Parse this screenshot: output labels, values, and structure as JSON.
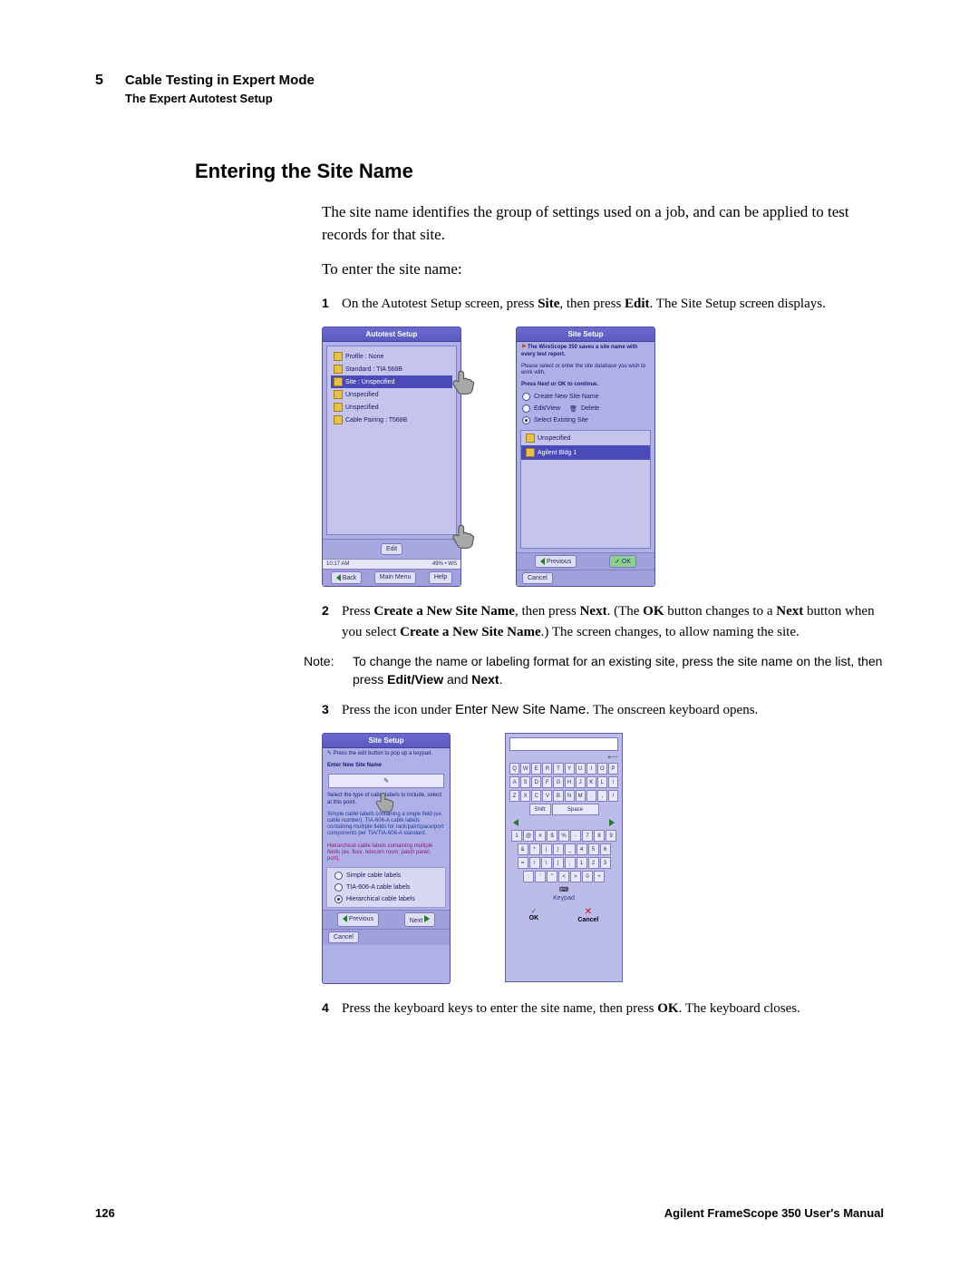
{
  "header": {
    "chapter": "5",
    "line1": "Cable Testing in Expert Mode",
    "line2": "The Expert Autotest Setup"
  },
  "section_title": "Entering the Site Name",
  "intro1": "The site name identifies the group of settings used on a job, and can be applied to test records for that site.",
  "intro2": "To enter the site name:",
  "step1": {
    "n": "1",
    "a": "On the Autotest Setup screen, press ",
    "b": "Site",
    "c": ", then press ",
    "d": "Edit",
    "e": ". The Site Setup screen displays."
  },
  "autotest_screen": {
    "title": "Autotest Setup",
    "items": [
      "Profile : None",
      "Standard : TIA 568B",
      "Site : Unspecified",
      "Unspecified",
      "Unspecified",
      "Cable Pairing : T568B"
    ],
    "edit": "Edit",
    "status_left": "10:17 AM",
    "status_right": "49% • WS",
    "btn_back": "Back",
    "btn_main": "Main\nMenu",
    "btn_help": "Help"
  },
  "sitesetup_screen": {
    "title": "Site Setup",
    "info1": "The WireScope 350 saves a site name with every test report.",
    "info2": "Please select or enter the site database you wish to work with.",
    "info3": "Press Next or OK to continue.",
    "r1": "Create New Site Name",
    "r2a": "Edit/View",
    "r2b": "Delete",
    "r3": "Select Existing Site",
    "site_a": "Unspecified",
    "site_b": "Agilent Bldg 1",
    "btn_prev": "Previous",
    "btn_ok": "OK",
    "btn_cancel": "Cancel"
  },
  "step2": {
    "n": "2",
    "a": "Press ",
    "b": "Create a New Site Name",
    "c": ", then press ",
    "d": "Next",
    "e": ". (The ",
    "f": "OK",
    "g": " button changes to a ",
    "h": "Next",
    "i": " button when you select ",
    "j": "Create a New Site Name",
    "k": ".) The screen changes, to allow naming the site."
  },
  "note": {
    "label": "Note:",
    "a": "To change the name or labeling format for an existing site, press the site name on the list, then press ",
    "b": "Edit/View",
    "c": " and ",
    "d": "Next",
    "e": "."
  },
  "step3": {
    "n": "3",
    "a": "Press the icon under ",
    "b": "Enter New Site Name.",
    "c": " The onscreen keyboard opens."
  },
  "sitesetup2": {
    "title": "Site Setup",
    "info1": "Press the edit button to pop up a keypad.",
    "label_enter": "Enter New Site Name",
    "info2": "Select the type of cable labels to include, select at this point.",
    "info3": "Simple cable labels containing a single field (ex. cable number). TIA-606-A cable labels containing multiple fields for rack/pair/space/port components per TIA/TIA-606-A standard.",
    "info4": "Hierarchical cable labels containing multiple fields (ex. floor, telecom room, patch panel, port).",
    "opt1": "Simple cable labels",
    "opt2": "TIA-606-A cable labels",
    "opt3": "Hierarchical cable labels",
    "btn_prev": "Previous",
    "btn_next": "Next",
    "btn_cancel": "Cancel"
  },
  "keyboard": {
    "row1": [
      "Q",
      "W",
      "E",
      "R",
      "T",
      "Y",
      "U",
      "I",
      "O",
      "P"
    ],
    "row2": [
      "A",
      "S",
      "D",
      "F",
      "G",
      "H",
      "J",
      "K",
      "L",
      "!"
    ],
    "row3": [
      "Z",
      "X",
      "C",
      "V",
      "B",
      "N",
      "M",
      ".",
      ",",
      "/"
    ],
    "shift": "Shift",
    "space": "Space",
    "row4": [
      "1",
      "@",
      "#",
      "$",
      "%",
      "-",
      "7",
      "8",
      "9"
    ],
    "row5": [
      "&",
      "*",
      "(",
      ")",
      "_",
      "4",
      "5",
      "6"
    ],
    "row6": [
      "=",
      "/",
      "\\",
      "|",
      ";",
      "1",
      "2",
      "3"
    ],
    "row7": [
      ":",
      "'",
      "\"",
      "<",
      ">",
      "0",
      "+"
    ],
    "keypad": "Keypad",
    "ok": "OK",
    "cancel": "Cancel"
  },
  "step4": {
    "n": "4",
    "a": "Press the keyboard keys to enter the site name, then press ",
    "b": "OK",
    "c": ". The keyboard closes."
  },
  "footer": {
    "page": "126",
    "manual": "Agilent FrameScope 350 User's Manual"
  }
}
